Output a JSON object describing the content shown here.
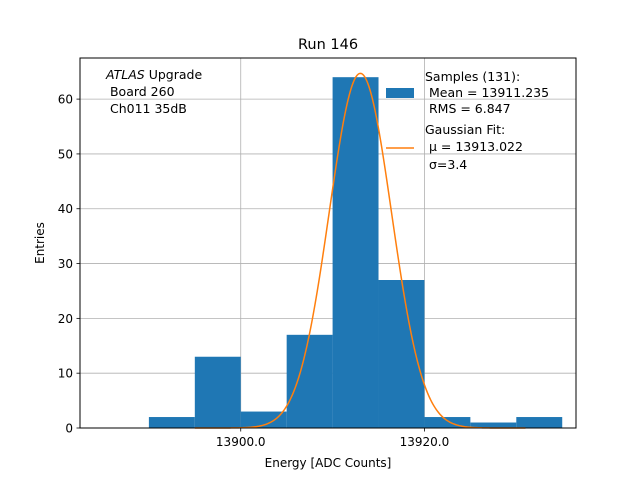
{
  "chart_data": {
    "type": "bar",
    "title": "Run 146",
    "xlabel": "Energy [ADC Counts]",
    "ylabel": "Entries",
    "xlim": [
      13882.5,
      13936.5
    ],
    "ylim": [
      0,
      67.5
    ],
    "grid": true,
    "x_ticks": [
      {
        "value": 13900,
        "label": "13900.0"
      },
      {
        "value": 13920,
        "label": "13920.0"
      }
    ],
    "y_ticks": [
      {
        "value": 0,
        "label": "0"
      },
      {
        "value": 10,
        "label": "10"
      },
      {
        "value": 20,
        "label": "20"
      },
      {
        "value": 30,
        "label": "30"
      },
      {
        "value": 40,
        "label": "40"
      },
      {
        "value": 50,
        "label": "50"
      },
      {
        "value": 60,
        "label": "60"
      }
    ],
    "bin_edges": [
      13890,
      13895,
      13900,
      13905,
      13910,
      13915,
      13920,
      13925,
      13930,
      13935
    ],
    "values": [
      2,
      13,
      3,
      17,
      64,
      27,
      2,
      1,
      2
    ],
    "bar_color": "#1f77b4",
    "fit": {
      "type": "gaussian",
      "amplitude": 64.7,
      "mu": 13913.022,
      "sigma": 3.4,
      "x_range": [
        13895,
        13931
      ],
      "color": "#ff7f0e"
    },
    "legend": {
      "location": "top-right",
      "entries": [
        {
          "kind": "patch",
          "color": "#1f77b4",
          "lines": [
            "Samples (131):",
            " Mean = 13911.235",
            " RMS = 6.847"
          ]
        },
        {
          "kind": "line",
          "color": "#ff7f0e",
          "lines": [
            "Gaussian Fit:",
            " μ = 13913.022",
            " σ=3.4"
          ]
        }
      ]
    },
    "annotation": {
      "location": "top-left",
      "italic_word": "ATLAS",
      "line1_rest": " Upgrade",
      "line2": " Board 260",
      "line3": " Ch011 35dB"
    }
  }
}
